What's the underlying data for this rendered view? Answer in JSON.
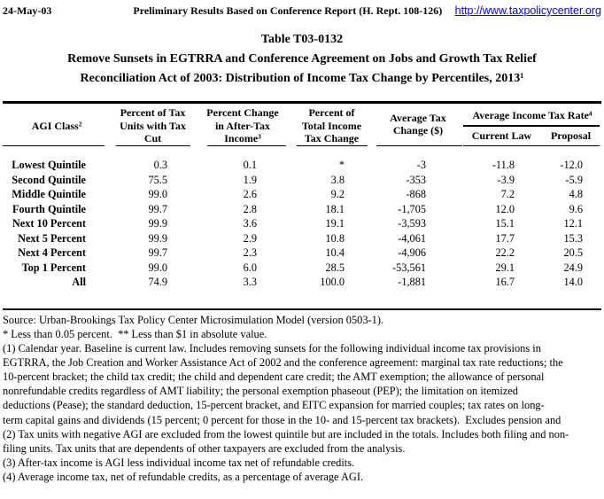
{
  "header": {
    "date": "24-May-03",
    "note": "Preliminary Results Based on Conference Report (H. Rept. 108-126)",
    "url": "http://www.taxpolicycenter.org"
  },
  "title": {
    "line1": "Table T03-0132",
    "line2": "Remove Sunsets in EGTRRA and Conference Agreement on Jobs and Growth Tax Relief",
    "line3": "Reconciliation Act of 2003: Distribution of Income Tax Change by Percentiles, 2013¹"
  },
  "colors": {
    "text": "#000000",
    "background": "#FFFFFF",
    "link_blue": "#0000EE"
  },
  "table": {
    "headers": {
      "agi_class": "AGI Class²",
      "col2_lines": [
        "Percent of Tax",
        "Units with Tax",
        "Cut"
      ],
      "col3_lines": [
        "Percent Change",
        "in After-Tax",
        "Income³"
      ],
      "col4_lines": [
        "Percent of",
        "Total Income",
        "Tax Change"
      ],
      "col5_lines": [
        "Average Tax",
        "Change ($)"
      ],
      "group_title": "Average Income Tax Rate⁴",
      "group_sub1": "Current Law",
      "group_sub2": "Proposal"
    },
    "rows": [
      {
        "label": "Lowest Quintile",
        "pct_units": "0.3",
        "pct_after_tax": "0.1",
        "pct_total": "*",
        "avg_change": "-3",
        "current_law": "-11.8",
        "proposal": "-12.0"
      },
      {
        "label": "Second Quintile",
        "pct_units": "75.5",
        "pct_after_tax": "1.9",
        "pct_total": "3.8",
        "avg_change": "-353",
        "current_law": "-3.9",
        "proposal": "-5.9"
      },
      {
        "label": "Middle Quintile",
        "pct_units": "99.0",
        "pct_after_tax": "2.6",
        "pct_total": "9.2",
        "avg_change": "-868",
        "current_law": "7.2",
        "proposal": "4.8"
      },
      {
        "label": "Fourth Quintile",
        "pct_units": "99.7",
        "pct_after_tax": "2.8",
        "pct_total": "18.1",
        "avg_change": "-1,705",
        "current_law": "12.0",
        "proposal": "9.6"
      },
      {
        "label": "Next 10 Percent",
        "pct_units": "99.9",
        "pct_after_tax": "3.6",
        "pct_total": "19.1",
        "avg_change": "-3,593",
        "current_law": "15.1",
        "proposal": "12.1"
      },
      {
        "label": "Next 5 Percent",
        "pct_units": "99.9",
        "pct_after_tax": "2.9",
        "pct_total": "10.8",
        "avg_change": "-4,061",
        "current_law": "17.7",
        "proposal": "15.3"
      },
      {
        "label": "Next 4 Percent",
        "pct_units": "99.7",
        "pct_after_tax": "2.3",
        "pct_total": "10.4",
        "avg_change": "-4,906",
        "current_law": "22.2",
        "proposal": "20.5"
      },
      {
        "label": "Top 1 Percent",
        "pct_units": "99.0",
        "pct_after_tax": "6.0",
        "pct_total": "28.5",
        "avg_change": "-53,561",
        "current_law": "29.1",
        "proposal": "24.9"
      },
      {
        "label": "All",
        "pct_units": "74.9",
        "pct_after_tax": "3.3",
        "pct_total": "100.0",
        "avg_change": "-1,881",
        "current_law": "16.7",
        "proposal": "14.0"
      }
    ]
  },
  "footnotes": {
    "lines": [
      "Source: Urban-Brookings Tax Policy Center Microsimulation Model (version 0503-1).",
      "* Less than 0.05 percent.  ** Less than $1 in absolute value.",
      "(1) Calendar year. Baseline is current law. Includes removing sunsets for the following individual income tax provisions in",
      "EGTRRA, the Job Creation and Worker Assistance Act of 2002 and the conference agreement: marginal tax rate reductions; the",
      "10-percent bracket; the child tax credit; the child and dependent care credit; the AMT exemption; the allowance of personal",
      "nonrefundable credits regardless of AMT liability; the personal exemption phaseout (PEP); the limitation on itemized",
      "deductions (Pease); the standard deduction, 15-percent bracket, and EITC expansion for married couples; tax rates on long-",
      "term capital gains and dividends (15 percent; 0 percent for those in the 10- and 15-percent tax brackets).  Excludes pension and",
      "(2) Tax units with negative AGI are excluded from the lowest quintile but are included in the totals. Includes both filing and non-",
      "filing units. Tax units that are dependents of other taxpayers are excluded from the analysis.",
      "(3) After-tax income is AGI less individual income tax net of refundable credits.",
      "(4) Average income tax, net of refundable credits, as a percentage of average AGI."
    ]
  }
}
